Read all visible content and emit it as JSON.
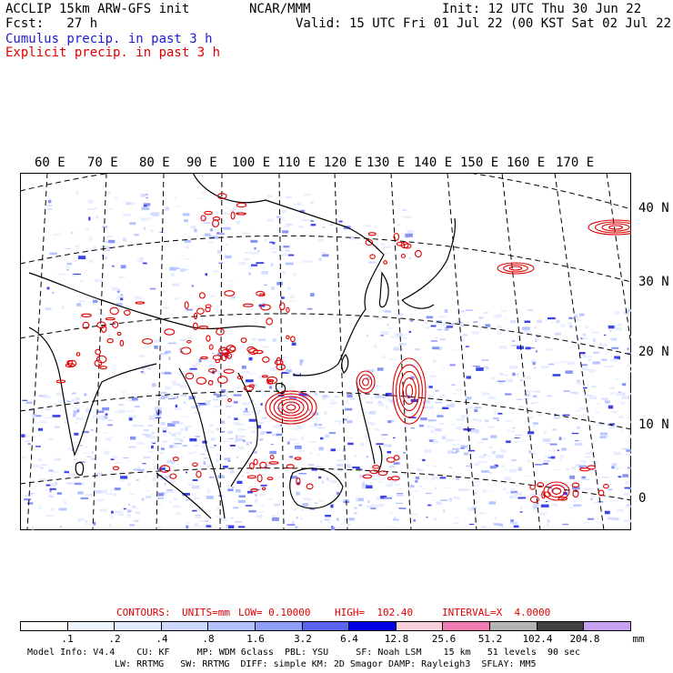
{
  "header": {
    "model_title": "ACCLIP 15km ARW-GFS init",
    "center": "NCAR/MMM",
    "init": "Init: 12 UTC Thu 30 Jun 22",
    "fcst": "Fcst:   27 h",
    "valid": "Valid: 15 UTC Fri 01 Jul 22 (00 KST Sat 02 Jul 22)",
    "legend_cumulus": "Cumulus precip. in past 3 h",
    "legend_explicit": "Explicit precip. in past 3 h"
  },
  "map": {
    "lon_labels": [
      "60 E",
      "70 E",
      "80 E",
      "90 E",
      "100 E",
      "110 E",
      "120 E",
      "130 E",
      "140 E",
      "150 E",
      "160 E",
      "170 E"
    ],
    "lat_labels": [
      "40 N",
      "30 N",
      "20 N",
      "10 N",
      "0"
    ],
    "colors": {
      "cumulus": "#2a2ae0",
      "explicit": "#e00000",
      "coast": "#000000",
      "grid": "#000000"
    }
  },
  "contours_info": {
    "label": "CONTOURS:",
    "units": "UNITS=mm",
    "low": "LOW= 0.10000",
    "high": "HIGH=  102.40",
    "interval": "INTERVAL=X  4.0000"
  },
  "colorbar": {
    "labels": [
      ".1",
      ".2",
      ".4",
      ".8",
      "1.6",
      "3.2",
      "6.4",
      "12.8",
      "25.6",
      "51.2",
      "102.4",
      "204.8"
    ],
    "unit": "mm",
    "colors": [
      "#ffffff",
      "#f0f4ff",
      "#e2eaff",
      "#cdd8ff",
      "#b4c2ff",
      "#8f9ff8",
      "#5a64f0",
      "#0000e0",
      "#f8d0dc",
      "#f07cb4",
      "#b4b4b4",
      "#404040",
      "#c8a0f0"
    ]
  },
  "footer": {
    "line1": "Model Info: V4.4    CU: KF     MP: WDM 6class  PBL: YSU     SF: Noah LSM    15 km   51 levels  90 sec",
    "line2": "LW: RRTMG   SW: RRTMG  DIFF: simple KM: 2D Smagor DAMP: Rayleigh3  SFLAY: MM5"
  }
}
